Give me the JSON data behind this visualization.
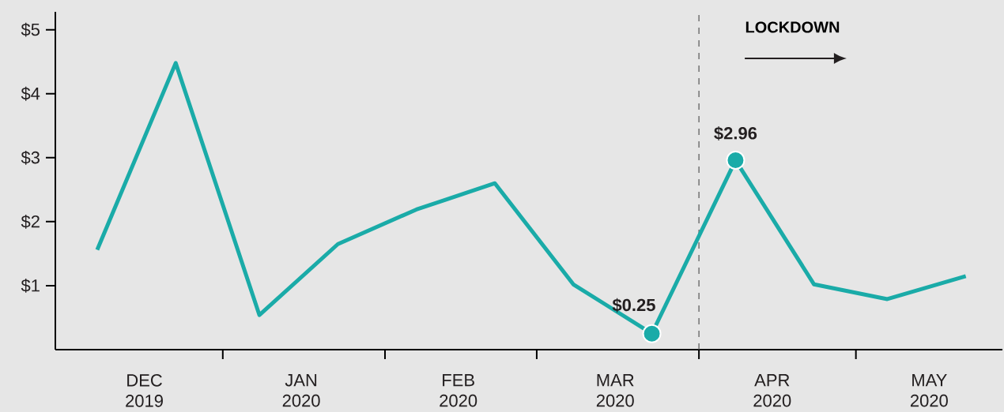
{
  "chart_data": {
    "type": "line",
    "x": [
      "2019-12-08",
      "2019-12-23",
      "2020-01-08",
      "2020-01-23",
      "2020-02-07",
      "2020-02-22",
      "2020-03-08",
      "2020-03-23",
      "2020-04-08",
      "2020-04-23",
      "2020-05-07",
      "2020-05-22"
    ],
    "xlim": [
      "2019-11-30",
      "2020-05-29"
    ],
    "xticks": [
      {
        "value": "2019-12-17",
        "label": "DEC 2019"
      },
      {
        "value": "2020-01-01",
        "label": null
      },
      {
        "value": "2020-01-16",
        "label": "JAN 2020"
      },
      {
        "value": "2020-02-01",
        "label": null
      },
      {
        "value": "2020-02-15",
        "label": "FEB 2020"
      },
      {
        "value": "2020-03-01",
        "label": null
      },
      {
        "value": "2020-03-16",
        "label": "MAR 2020"
      },
      {
        "value": "2020-04-01",
        "label": null
      },
      {
        "value": "2020-04-15",
        "label": "APR 2020"
      },
      {
        "value": "2020-05-01",
        "label": null
      },
      {
        "value": "2020-05-15",
        "label": "MAY 2020"
      }
    ],
    "ylim": [
      0,
      5.28
    ],
    "yticks": [
      {
        "value": 1,
        "label": "$1"
      },
      {
        "value": 2,
        "label": "$2"
      },
      {
        "value": 3,
        "label": "$3"
      },
      {
        "value": 4,
        "label": "$4"
      },
      {
        "value": 5,
        "label": "$5"
      }
    ],
    "series": [
      {
        "color": "#1aaba8",
        "values": [
          1.56,
          4.48,
          0.54,
          1.65,
          2.19,
          2.6,
          1.02,
          0.25,
          2.96,
          1.02,
          0.79,
          1.15
        ],
        "value_labels": [
          null,
          null,
          null,
          null,
          null,
          null,
          null,
          "$0.25",
          "$2.96",
          null,
          null,
          null
        ]
      }
    ],
    "ref_lines": [
      {
        "axis": "x",
        "value": "2020-04-01",
        "label": "LOCKDOWN",
        "line_style": "dashed",
        "color": "#555555"
      }
    ],
    "line_style": "solid",
    "grid": false
  }
}
